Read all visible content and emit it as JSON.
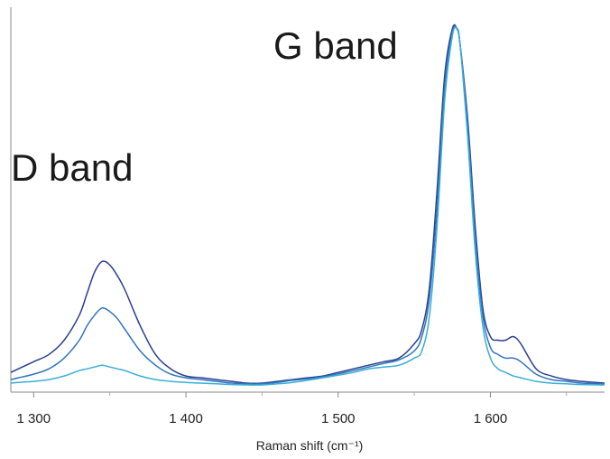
{
  "chart_data": {
    "type": "line",
    "title": "",
    "xlabel": "Raman shift (cm⁻¹)",
    "ylabel": "",
    "xlim": [
      1285,
      1675
    ],
    "ylim": [
      0,
      1.05
    ],
    "xticks": [
      1300,
      1400,
      1500,
      1600
    ],
    "xtick_labels": [
      "1 300",
      "1 400",
      "1 500",
      "1 600"
    ],
    "grid": false,
    "annotations": [
      {
        "text": "D band",
        "x": 1345,
        "y": 0.6
      },
      {
        "text": "G band",
        "x": 1575,
        "y": 0.93
      }
    ],
    "series": [
      {
        "color": "#2a3f8f",
        "x": [
          1285,
          1290,
          1300,
          1310,
          1320,
          1330,
          1335,
          1340,
          1345,
          1350,
          1355,
          1360,
          1370,
          1380,
          1390,
          1400,
          1410,
          1420,
          1430,
          1440,
          1450,
          1460,
          1470,
          1480,
          1490,
          1500,
          1510,
          1520,
          1530,
          1540,
          1550,
          1555,
          1560,
          1565,
          1570,
          1575,
          1578,
          1580,
          1585,
          1590,
          1595,
          1600,
          1605,
          1610,
          1615,
          1620,
          1630,
          1640,
          1650,
          1660,
          1675
        ],
        "values": [
          0.04,
          0.05,
          0.07,
          0.09,
          0.13,
          0.2,
          0.26,
          0.32,
          0.35,
          0.34,
          0.31,
          0.27,
          0.17,
          0.09,
          0.05,
          0.03,
          0.025,
          0.02,
          0.015,
          0.01,
          0.01,
          0.015,
          0.02,
          0.025,
          0.03,
          0.04,
          0.05,
          0.06,
          0.07,
          0.08,
          0.12,
          0.16,
          0.28,
          0.55,
          0.87,
          1.0,
          1.0,
          0.96,
          0.75,
          0.45,
          0.22,
          0.14,
          0.13,
          0.13,
          0.14,
          0.12,
          0.05,
          0.03,
          0.02,
          0.015,
          0.01
        ]
      },
      {
        "color": "#2f75be",
        "x": [
          1285,
          1290,
          1300,
          1310,
          1320,
          1330,
          1335,
          1340,
          1345,
          1350,
          1355,
          1360,
          1370,
          1380,
          1390,
          1400,
          1410,
          1420,
          1430,
          1440,
          1450,
          1460,
          1470,
          1480,
          1490,
          1500,
          1510,
          1520,
          1530,
          1540,
          1550,
          1555,
          1560,
          1565,
          1570,
          1575,
          1578,
          1580,
          1585,
          1590,
          1595,
          1600,
          1605,
          1610,
          1615,
          1620,
          1630,
          1640,
          1650,
          1660,
          1675
        ],
        "values": [
          0.02,
          0.025,
          0.035,
          0.05,
          0.08,
          0.13,
          0.17,
          0.2,
          0.22,
          0.21,
          0.19,
          0.16,
          0.1,
          0.06,
          0.035,
          0.025,
          0.02,
          0.015,
          0.01,
          0.008,
          0.008,
          0.012,
          0.018,
          0.022,
          0.028,
          0.036,
          0.045,
          0.055,
          0.065,
          0.075,
          0.1,
          0.14,
          0.25,
          0.5,
          0.84,
          0.99,
          1.0,
          0.96,
          0.73,
          0.42,
          0.2,
          0.11,
          0.09,
          0.08,
          0.08,
          0.07,
          0.035,
          0.02,
          0.015,
          0.01,
          0.008
        ]
      },
      {
        "color": "#3aaed8",
        "x": [
          1285,
          1290,
          1300,
          1310,
          1320,
          1330,
          1335,
          1340,
          1345,
          1350,
          1355,
          1360,
          1370,
          1380,
          1390,
          1400,
          1410,
          1420,
          1430,
          1440,
          1450,
          1460,
          1470,
          1480,
          1490,
          1500,
          1510,
          1520,
          1530,
          1540,
          1550,
          1555,
          1560,
          1565,
          1570,
          1575,
          1578,
          1580,
          1585,
          1590,
          1595,
          1600,
          1605,
          1610,
          1615,
          1620,
          1630,
          1640,
          1650,
          1660,
          1675
        ],
        "values": [
          0.01,
          0.012,
          0.015,
          0.02,
          0.03,
          0.045,
          0.05,
          0.055,
          0.06,
          0.055,
          0.05,
          0.045,
          0.03,
          0.02,
          0.015,
          0.012,
          0.01,
          0.008,
          0.006,
          0.005,
          0.005,
          0.008,
          0.012,
          0.018,
          0.025,
          0.032,
          0.04,
          0.05,
          0.055,
          0.06,
          0.08,
          0.1,
          0.2,
          0.45,
          0.8,
          0.98,
          1.0,
          0.96,
          0.7,
          0.38,
          0.17,
          0.08,
          0.05,
          0.04,
          0.03,
          0.025,
          0.015,
          0.01,
          0.008,
          0.006,
          0.005
        ]
      }
    ]
  }
}
